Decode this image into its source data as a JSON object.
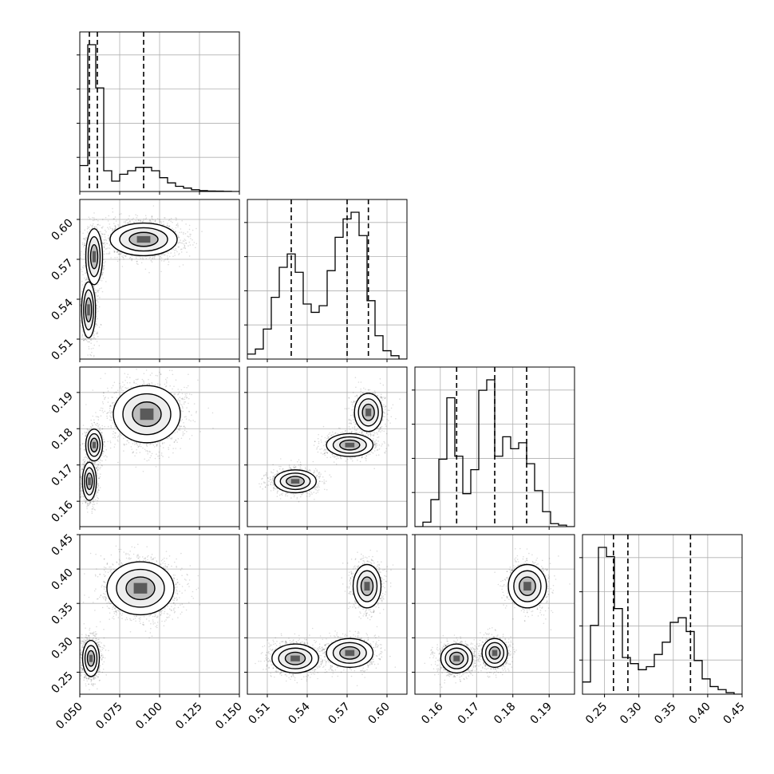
{
  "chart_data": {
    "type": "corner",
    "parameters": [
      {
        "index": 0,
        "range": [
          0.05,
          0.15
        ],
        "ticks": [
          "0.050",
          "0.075",
          "0.100",
          "0.125",
          "0.150"
        ],
        "tick_values": [
          0.05,
          0.075,
          0.1,
          0.125,
          0.15
        ],
        "quantiles": [
          0.056,
          0.061,
          0.09
        ]
      },
      {
        "index": 1,
        "range": [
          0.495,
          0.615
        ],
        "ticks": [
          "0.51",
          "0.54",
          "0.57",
          "0.60"
        ],
        "tick_values": [
          0.51,
          0.54,
          0.57,
          0.6
        ],
        "quantiles": [
          0.528,
          0.57,
          0.586
        ]
      },
      {
        "index": 2,
        "range": [
          0.153,
          0.197
        ],
        "ticks": [
          "0.16",
          "0.17",
          "0.18",
          "0.19"
        ],
        "tick_values": [
          0.16,
          0.17,
          0.18,
          0.19
        ],
        "quantiles": [
          0.1645,
          0.175,
          0.1838
        ]
      },
      {
        "index": 3,
        "range": [
          0.218,
          0.45
        ],
        "ticks": [
          "0.25",
          "0.30",
          "0.35",
          "0.40",
          "0.45"
        ],
        "tick_values": [
          0.25,
          0.3,
          0.35,
          0.4,
          0.45
        ],
        "quantiles": [
          0.263,
          0.284,
          0.375
        ]
      }
    ],
    "histograms": [
      {
        "param": 0,
        "bins": [
          0.05,
          0.055,
          0.06,
          0.065,
          0.07,
          0.075,
          0.08,
          0.085,
          0.09,
          0.095,
          0.1,
          0.105,
          0.11,
          0.115,
          0.12,
          0.125,
          0.13,
          0.135,
          0.14,
          0.145,
          0.15
        ],
        "counts": [
          0.15,
          0.85,
          0.6,
          0.12,
          0.06,
          0.1,
          0.12,
          0.14,
          0.14,
          0.12,
          0.08,
          0.05,
          0.03,
          0.02,
          0.01,
          0.005,
          0.003,
          0.002,
          0.001,
          0.0
        ]
      },
      {
        "param": 1,
        "bins": [
          0.495,
          0.501,
          0.507,
          0.513,
          0.519,
          0.525,
          0.531,
          0.537,
          0.543,
          0.549,
          0.555,
          0.561,
          0.567,
          0.573,
          0.579,
          0.585,
          0.591,
          0.597,
          0.603,
          0.609,
          0.615
        ],
        "counts": [
          0.03,
          0.06,
          0.18,
          0.37,
          0.55,
          0.63,
          0.52,
          0.33,
          0.28,
          0.32,
          0.53,
          0.73,
          0.84,
          0.88,
          0.74,
          0.35,
          0.14,
          0.05,
          0.02,
          0.0
        ]
      },
      {
        "param": 2,
        "bins": [
          0.153,
          0.1552,
          0.1574,
          0.1596,
          0.1618,
          0.164,
          0.1662,
          0.1684,
          0.1706,
          0.1728,
          0.175,
          0.1772,
          0.1794,
          0.1816,
          0.1838,
          0.186,
          0.1882,
          0.1904,
          0.1926,
          0.1948,
          0.197
        ],
        "counts": [
          0.0,
          0.03,
          0.18,
          0.45,
          0.86,
          0.47,
          0.22,
          0.38,
          0.91,
          0.98,
          0.47,
          0.6,
          0.52,
          0.56,
          0.42,
          0.24,
          0.1,
          0.02,
          0.01,
          0.0
        ]
      },
      {
        "param": 3,
        "bins": [
          0.218,
          0.2296,
          0.2412,
          0.2528,
          0.2644,
          0.276,
          0.2876,
          0.2992,
          0.3108,
          0.3224,
          0.334,
          0.3456,
          0.3572,
          0.3688,
          0.3804,
          0.392,
          0.4036,
          0.4152,
          0.4268,
          0.4384,
          0.45
        ],
        "counts": [
          0.08,
          0.45,
          0.96,
          0.9,
          0.56,
          0.24,
          0.2,
          0.16,
          0.18,
          0.26,
          0.34,
          0.47,
          0.5,
          0.41,
          0.22,
          0.1,
          0.05,
          0.03,
          0.01,
          0.0
        ]
      }
    ],
    "pairs": [
      {
        "x_param": 0,
        "y_param": 1,
        "clusters": [
          {
            "x": 0.0555,
            "y": 0.532,
            "sx": 0.0025,
            "sy": 0.012,
            "n": 900
          },
          {
            "x": 0.059,
            "y": 0.572,
            "sx": 0.003,
            "sy": 0.012,
            "n": 700
          },
          {
            "x": 0.09,
            "y": 0.585,
            "sx": 0.012,
            "sy": 0.007,
            "n": 1800
          }
        ]
      },
      {
        "x_param": 0,
        "y_param": 2,
        "clusters": [
          {
            "x": 0.056,
            "y": 0.1655,
            "sx": 0.0025,
            "sy": 0.003,
            "n": 900
          },
          {
            "x": 0.059,
            "y": 0.1755,
            "sx": 0.003,
            "sy": 0.0025,
            "n": 700
          },
          {
            "x": 0.092,
            "y": 0.184,
            "sx": 0.012,
            "sy": 0.0045,
            "n": 1800
          }
        ]
      },
      {
        "x_param": 0,
        "y_param": 3,
        "clusters": [
          {
            "x": 0.057,
            "y": 0.27,
            "sx": 0.003,
            "sy": 0.015,
            "n": 1200
          },
          {
            "x": 0.088,
            "y": 0.372,
            "sx": 0.012,
            "sy": 0.022,
            "n": 1800
          }
        ]
      },
      {
        "x_param": 1,
        "y_param": 2,
        "clusters": [
          {
            "x": 0.531,
            "y": 0.1655,
            "sx": 0.009,
            "sy": 0.0018,
            "n": 1100
          },
          {
            "x": 0.572,
            "y": 0.1755,
            "sx": 0.01,
            "sy": 0.0018,
            "n": 900
          },
          {
            "x": 0.586,
            "y": 0.1845,
            "sx": 0.006,
            "sy": 0.003,
            "n": 900
          }
        ]
      },
      {
        "x_param": 1,
        "y_param": 3,
        "clusters": [
          {
            "x": 0.531,
            "y": 0.27,
            "sx": 0.01,
            "sy": 0.012,
            "n": 1100
          },
          {
            "x": 0.572,
            "y": 0.278,
            "sx": 0.01,
            "sy": 0.012,
            "n": 900
          },
          {
            "x": 0.585,
            "y": 0.375,
            "sx": 0.006,
            "sy": 0.018,
            "n": 900
          }
        ]
      },
      {
        "x_param": 2,
        "y_param": 3,
        "clusters": [
          {
            "x": 0.1645,
            "y": 0.27,
            "sx": 0.0025,
            "sy": 0.012,
            "n": 1100
          },
          {
            "x": 0.175,
            "y": 0.278,
            "sx": 0.002,
            "sy": 0.012,
            "n": 900
          },
          {
            "x": 0.184,
            "y": 0.375,
            "sx": 0.003,
            "sy": 0.018,
            "n": 900
          }
        ]
      }
    ],
    "grid": true,
    "legend": "none"
  }
}
